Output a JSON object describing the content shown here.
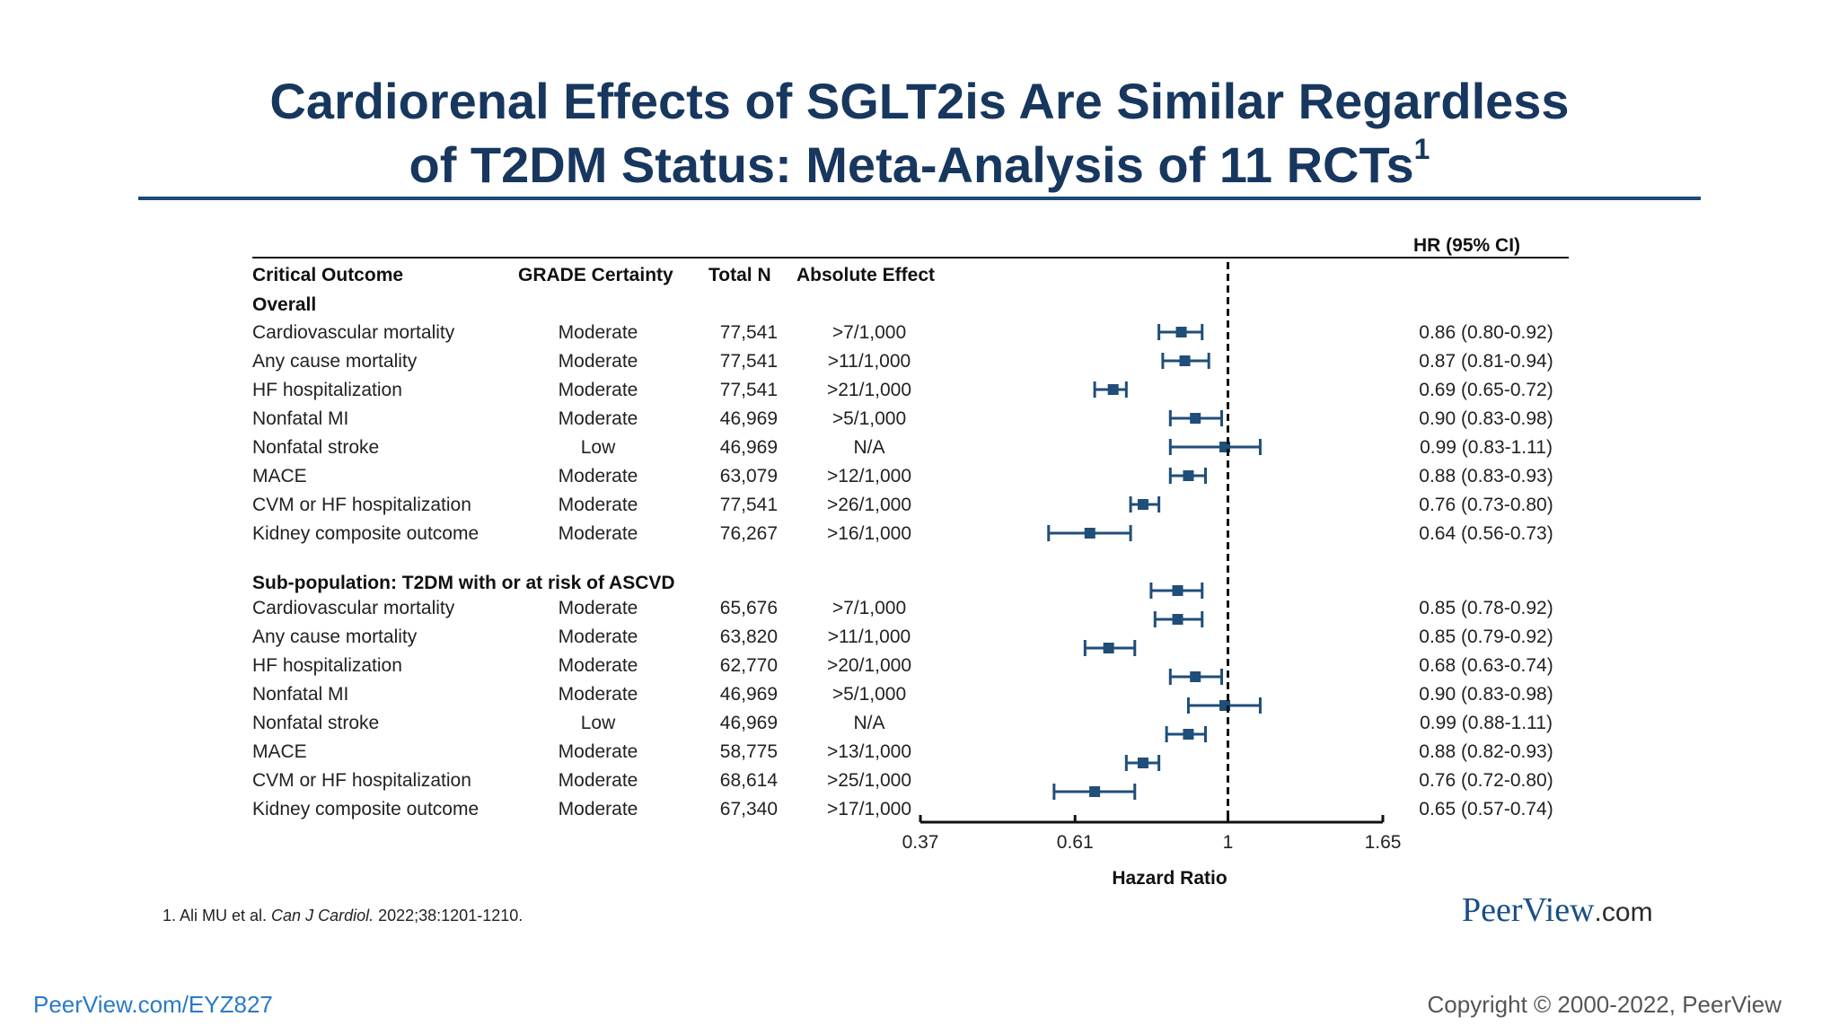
{
  "slide": {
    "title_line1": "Cardiorenal Effects of SGLT2is Are Similar Regardless",
    "title_line2": "of T2DM Status: Meta-Analysis of 11 RCTs",
    "title_sup": "1",
    "footnote_pre": "1. Ali MU et al. ",
    "footnote_journal": "Can J Cardiol.",
    "footnote_post": " 2022;38:1201-1210.",
    "brand_name": "PeerView",
    "brand_domain": ".com",
    "url": "PeerView.com/EYZ827",
    "copyright": "Copyright © 2000-2022, PeerView",
    "title_color": "#17375e",
    "marker_color": "#1f4e79"
  },
  "table": {
    "headers": {
      "outcome": "Critical Outcome",
      "grade": "GRADE Certainty",
      "total_n": "Total N",
      "absolute": "Absolute Effect",
      "hr": "HR (95% CI)"
    }
  },
  "chart_data": {
    "type": "forest",
    "xlabel": "Hazard Ratio",
    "x_scale": "log",
    "xlim": [
      0.37,
      1.65
    ],
    "xticks": [
      0.37,
      0.61,
      1,
      1.65
    ],
    "xtick_labels": [
      "0.37",
      "0.61",
      "1",
      "1.65"
    ],
    "reference_line": 1,
    "sections": [
      {
        "label": "Overall",
        "rows": [
          {
            "outcome": "Cardiovascular mortality",
            "grade": "Moderate",
            "n": "77,541",
            "abs": ">7/1,000",
            "hr": 0.86,
            "lo": 0.8,
            "hi": 0.92,
            "hr_text": "0.86 (0.80-0.92)"
          },
          {
            "outcome": "Any cause mortality",
            "grade": "Moderate",
            "n": "77,541",
            "abs": ">11/1,000",
            "hr": 0.87,
            "lo": 0.81,
            "hi": 0.94,
            "hr_text": "0.87 (0.81-0.94)"
          },
          {
            "outcome": "HF hospitalization",
            "grade": "Moderate",
            "n": "77,541",
            "abs": ">21/1,000",
            "hr": 0.69,
            "lo": 0.65,
            "hi": 0.72,
            "hr_text": "0.69 (0.65-0.72)"
          },
          {
            "outcome": "Nonfatal MI",
            "grade": "Moderate",
            "n": "46,969",
            "abs": ">5/1,000",
            "hr": 0.9,
            "lo": 0.83,
            "hi": 0.98,
            "hr_text": "0.90 (0.83-0.98)"
          },
          {
            "outcome": "Nonfatal stroke",
            "grade": "Low",
            "n": "46,969",
            "abs": "N/A",
            "hr": 0.99,
            "lo": 0.83,
            "hi": 1.11,
            "hr_text": "0.99 (0.83-1.11)"
          },
          {
            "outcome": "MACE",
            "grade": "Moderate",
            "n": "63,079",
            "abs": ">12/1,000",
            "hr": 0.88,
            "lo": 0.83,
            "hi": 0.93,
            "hr_text": "0.88 (0.83-0.93)"
          },
          {
            "outcome": "CVM or HF hospitalization",
            "grade": "Moderate",
            "n": "77,541",
            "abs": ">26/1,000",
            "hr": 0.76,
            "lo": 0.73,
            "hi": 0.8,
            "hr_text": "0.76 (0.73-0.80)"
          },
          {
            "outcome": "Kidney composite outcome",
            "grade": "Moderate",
            "n": "76,267",
            "abs": ">16/1,000",
            "hr": 0.64,
            "lo": 0.56,
            "hi": 0.73,
            "hr_text": "0.64 (0.56-0.73)"
          }
        ]
      },
      {
        "label": "Sub-population: T2DM with or at risk of ASCVD",
        "rows": [
          {
            "outcome": "Cardiovascular mortality",
            "grade": "Moderate",
            "n": "65,676",
            "abs": ">7/1,000",
            "hr": 0.85,
            "lo": 0.78,
            "hi": 0.92,
            "hr_text": "0.85 (0.78-0.92)"
          },
          {
            "outcome": "Any cause mortality",
            "grade": "Moderate",
            "n": "63,820",
            "abs": ">11/1,000",
            "hr": 0.85,
            "lo": 0.79,
            "hi": 0.92,
            "hr_text": "0.85 (0.79-0.92)"
          },
          {
            "outcome": "HF hospitalization",
            "grade": "Moderate",
            "n": "62,770",
            "abs": ">20/1,000",
            "hr": 0.68,
            "lo": 0.63,
            "hi": 0.74,
            "hr_text": "0.68 (0.63-0.74)"
          },
          {
            "outcome": "Nonfatal MI",
            "grade": "Moderate",
            "n": "46,969",
            "abs": ">5/1,000",
            "hr": 0.9,
            "lo": 0.83,
            "hi": 0.98,
            "hr_text": "0.90 (0.83-0.98)"
          },
          {
            "outcome": "Nonfatal stroke",
            "grade": "Low",
            "n": "46,969",
            "abs": "N/A",
            "hr": 0.99,
            "lo": 0.88,
            "hi": 1.11,
            "hr_text": "0.99 (0.88-1.11)"
          },
          {
            "outcome": "MACE",
            "grade": "Moderate",
            "n": "58,775",
            "abs": ">13/1,000",
            "hr": 0.88,
            "lo": 0.82,
            "hi": 0.93,
            "hr_text": "0.88 (0.82-0.93)"
          },
          {
            "outcome": "CVM or HF hospitalization",
            "grade": "Moderate",
            "n": "68,614",
            "abs": ">25/1,000",
            "hr": 0.76,
            "lo": 0.72,
            "hi": 0.8,
            "hr_text": "0.76 (0.72-0.80)"
          },
          {
            "outcome": "Kidney composite outcome",
            "grade": "Moderate",
            "n": "67,340",
            "abs": ">17/1,000",
            "hr": 0.65,
            "lo": 0.57,
            "hi": 0.74,
            "hr_text": "0.65 (0.57-0.74)"
          }
        ]
      }
    ]
  }
}
